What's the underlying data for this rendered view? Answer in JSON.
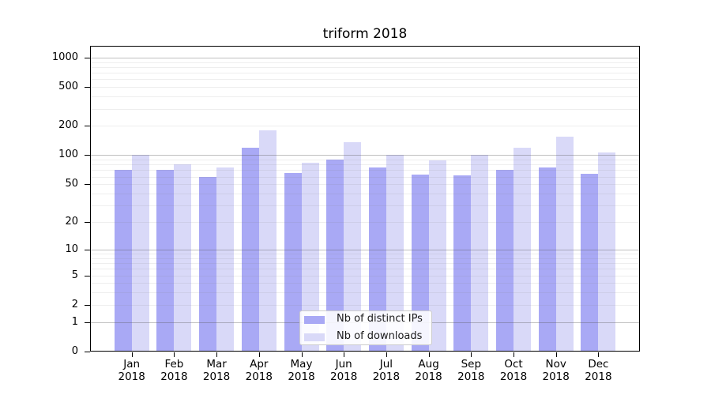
{
  "chart_data": {
    "type": "bar",
    "title": "triform 2018",
    "categories": [
      "Jan",
      "Feb",
      "Mar",
      "Apr",
      "May",
      "Jun",
      "Jul",
      "Aug",
      "Sep",
      "Oct",
      "Nov",
      "Dec"
    ],
    "x_year_label": "2018",
    "series": [
      {
        "name": "Nb of distinct IPs",
        "color": "#a9a9f5",
        "values": [
          70,
          70,
          60,
          120,
          65,
          90,
          75,
          63,
          62,
          70,
          75,
          64
        ]
      },
      {
        "name": "Nb of downloads",
        "color": "#d9d9f8",
        "values": [
          101,
          80,
          74,
          180,
          84,
          135,
          100,
          89,
          100,
          120,
          154,
          107
        ]
      }
    ],
    "xlabel": "",
    "ylabel": "",
    "yscale": "log1p",
    "ylim": [
      0,
      1310
    ],
    "yticks": [
      0,
      1,
      2,
      5,
      10,
      20,
      50,
      100,
      200,
      500,
      1000
    ],
    "major_gridlines": [
      1,
      10,
      100,
      1000
    ],
    "minor_gridlines": [
      2,
      3,
      4,
      5,
      6,
      7,
      8,
      9,
      20,
      30,
      40,
      50,
      60,
      70,
      80,
      90,
      200,
      300,
      400,
      500,
      600,
      700,
      800,
      900
    ],
    "grid": true,
    "legend": {
      "position": "lower center",
      "entries": [
        "Nb of distinct IPs",
        "Nb of downloads"
      ]
    }
  }
}
